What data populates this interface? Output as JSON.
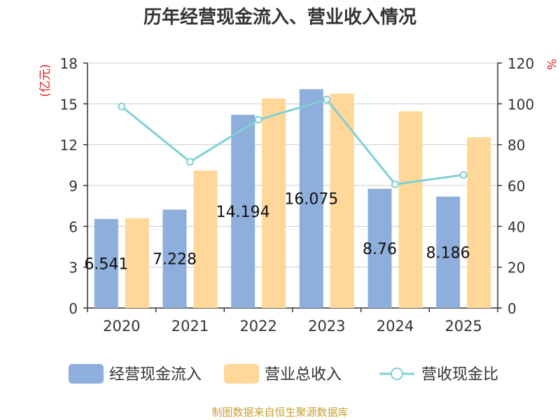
{
  "chart_data": {
    "type": "bar",
    "title": "历年经营现金流入、营业收入情况",
    "categories": [
      "2020",
      "2021",
      "2022",
      "2023",
      "2024",
      "2025"
    ],
    "series": [
      {
        "name": "经营现金流入",
        "kind": "bar",
        "axis": "left",
        "color": "#8eaedb",
        "values": [
          6.541,
          7.228,
          14.194,
          16.075,
          8.76,
          8.186
        ],
        "labels": [
          "6.541",
          "7.228",
          "14.194",
          "16.075",
          "8.76",
          "8.186"
        ]
      },
      {
        "name": "营业总收入",
        "kind": "bar",
        "axis": "left",
        "color": "#ffd899",
        "values": [
          6.6,
          10.1,
          15.4,
          15.75,
          14.45,
          12.55
        ]
      },
      {
        "name": "营收现金比",
        "kind": "line",
        "axis": "right",
        "color": "#7fd0d4",
        "values": [
          98.7,
          71.6,
          92.2,
          102.1,
          60.6,
          65.2
        ]
      }
    ],
    "y_left": {
      "label": "(亿元)",
      "min": 0,
      "max": 18,
      "ticks": [
        0,
        3,
        6,
        9,
        12,
        15,
        18
      ]
    },
    "y_right": {
      "label": "%",
      "min": 0,
      "max": 120,
      "ticks": [
        0,
        20,
        40,
        60,
        80,
        100,
        120
      ]
    },
    "grid": true,
    "legend_position": "bottom",
    "source": "制图数据来自恒生聚源数据库"
  }
}
